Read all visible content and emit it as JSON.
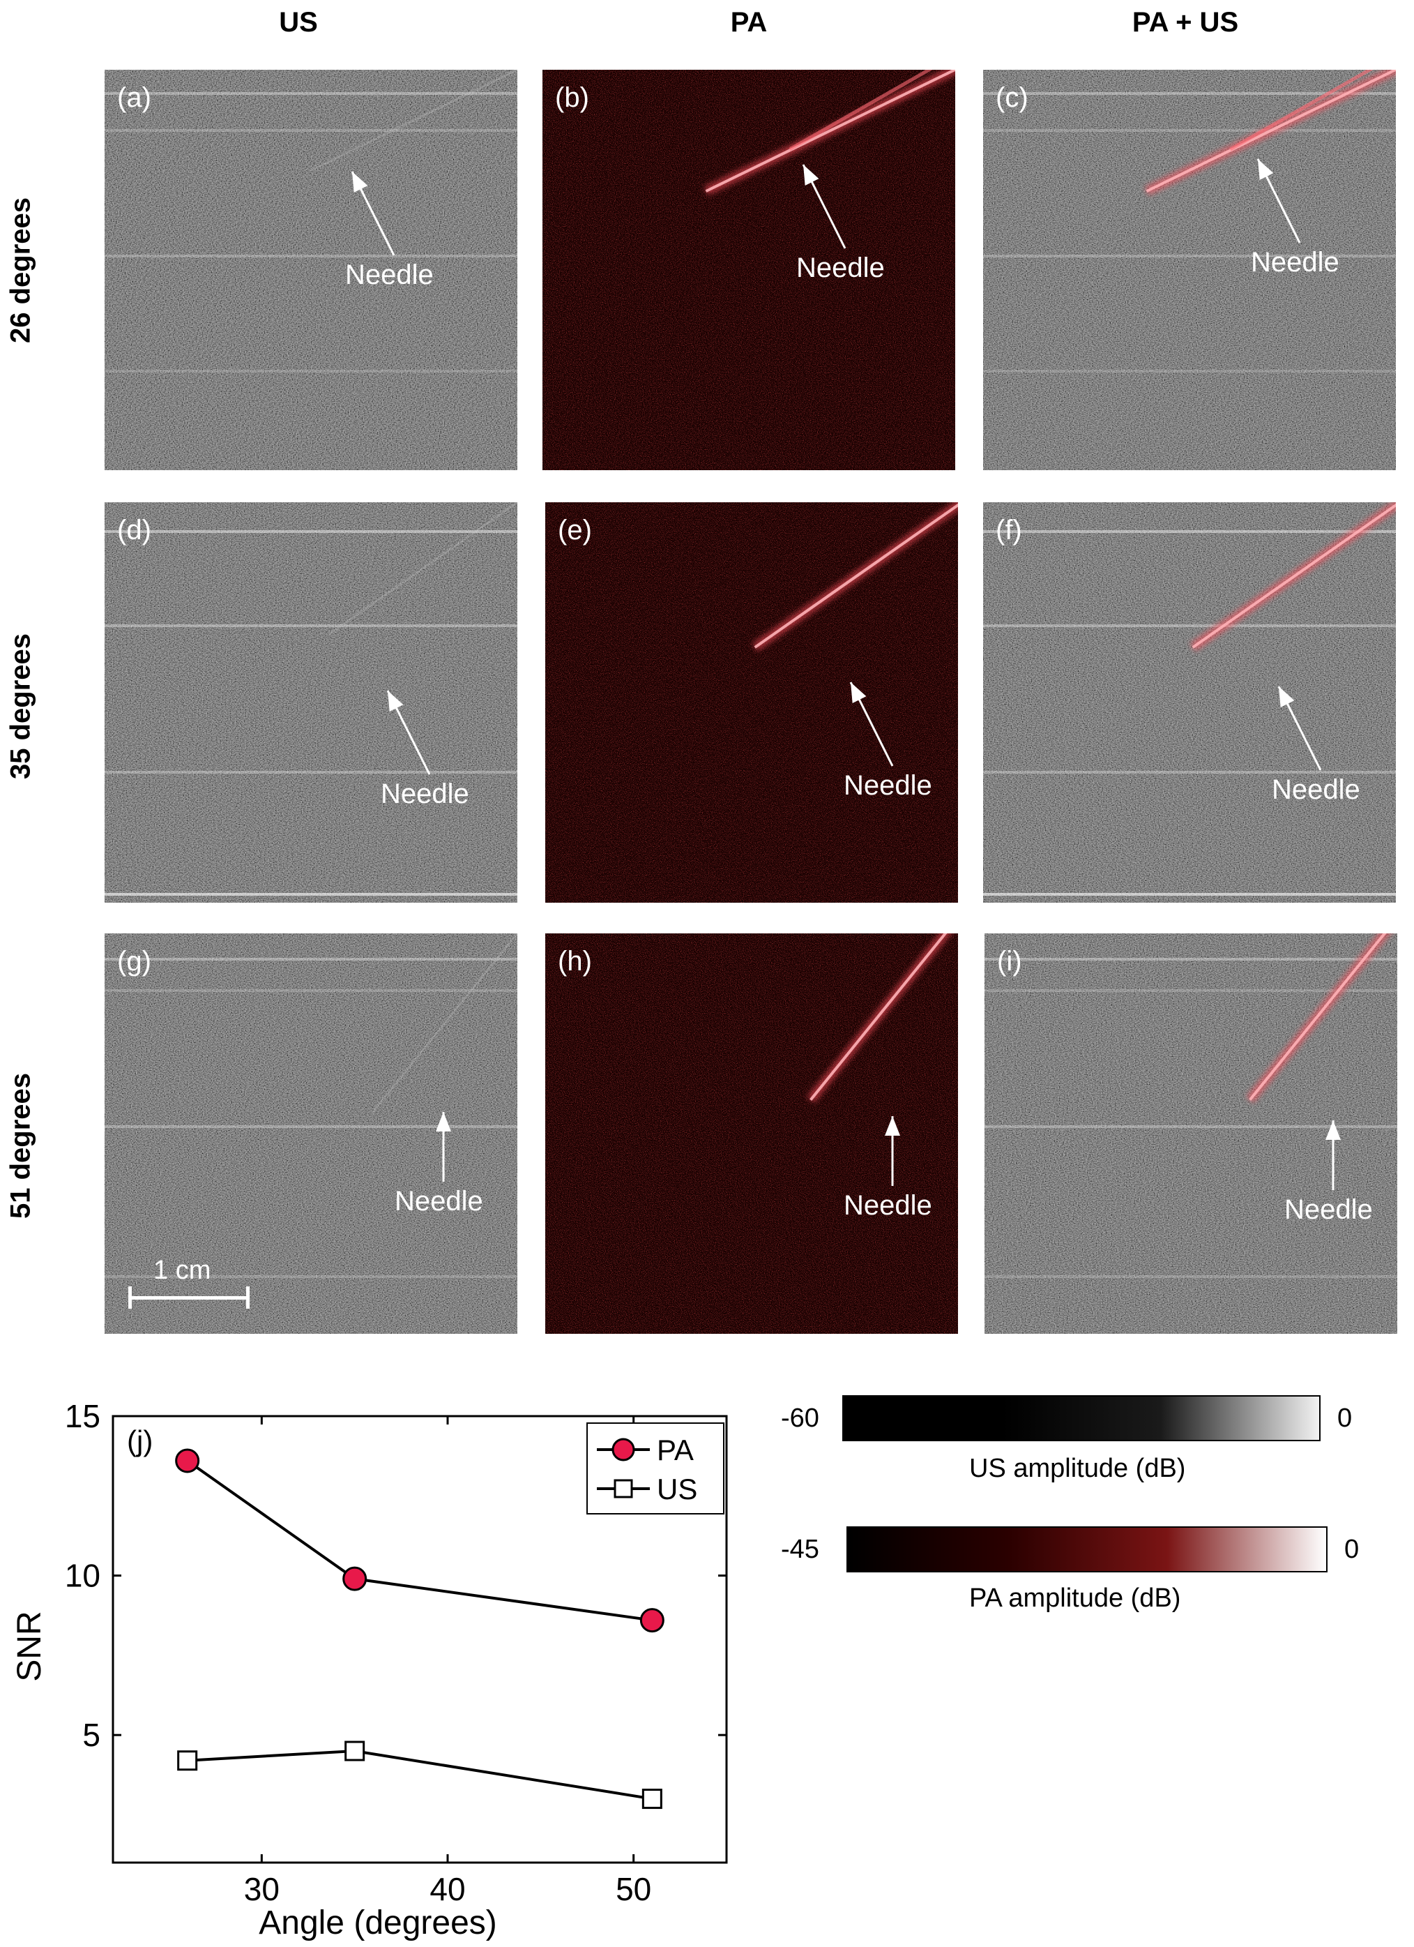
{
  "columns": [
    "US",
    "PA",
    "PA + US"
  ],
  "rows": [
    "26 degrees",
    "35 degrees",
    "51 degrees"
  ],
  "panels": [
    {
      "label": "(a)",
      "kind": "us",
      "annotation": "Needle",
      "needle_angle_deg": 26
    },
    {
      "label": "(b)",
      "kind": "pa",
      "annotation": "Needle",
      "needle_angle_deg": 26
    },
    {
      "label": "(c)",
      "kind": "overlay",
      "annotation": "Needle",
      "needle_angle_deg": 26
    },
    {
      "label": "(d)",
      "kind": "us",
      "annotation": "Needle",
      "needle_angle_deg": 35
    },
    {
      "label": "(e)",
      "kind": "pa",
      "annotation": "Needle",
      "needle_angle_deg": 35
    },
    {
      "label": "(f)",
      "kind": "overlay",
      "annotation": "Needle",
      "needle_angle_deg": 35
    },
    {
      "label": "(g)",
      "kind": "us",
      "annotation": "Needle",
      "needle_angle_deg": 51
    },
    {
      "label": "(h)",
      "kind": "pa",
      "annotation": "Needle",
      "needle_angle_deg": 51
    },
    {
      "label": "(i)",
      "kind": "overlay",
      "annotation": "Needle",
      "needle_angle_deg": 51
    }
  ],
  "scale_bar": {
    "label": "1 cm"
  },
  "colorbars": [
    {
      "min_label": "-60",
      "max_label": "0",
      "label": "US amplitude (dB)",
      "colors": [
        "#000000",
        "#000000",
        "#1a1a1a",
        "#f2f2f2"
      ]
    },
    {
      "min_label": "-45",
      "max_label": "0",
      "label": "PA amplitude (dB)",
      "colors": [
        "#000000",
        "#2a0000",
        "#7a1414",
        "#ffffff"
      ]
    }
  ],
  "chart_data": {
    "type": "line",
    "panel_label": "(j)",
    "xlabel": "Angle (degrees)",
    "ylabel": "SNR",
    "xlim": [
      22,
      55
    ],
    "ylim": [
      1,
      15
    ],
    "xticks": [
      30,
      40,
      50
    ],
    "yticks": [
      5,
      10,
      15
    ],
    "legend_position": "top-right",
    "series": [
      {
        "name": "PA",
        "x": [
          26,
          35,
          51
        ],
        "y": [
          13.6,
          9.9,
          8.6
        ],
        "marker": "circle",
        "color": "#e8194a"
      },
      {
        "name": "US",
        "x": [
          26,
          35,
          51
        ],
        "y": [
          4.2,
          4.5,
          3.0
        ],
        "marker": "square",
        "color": "#ffffff"
      }
    ]
  }
}
